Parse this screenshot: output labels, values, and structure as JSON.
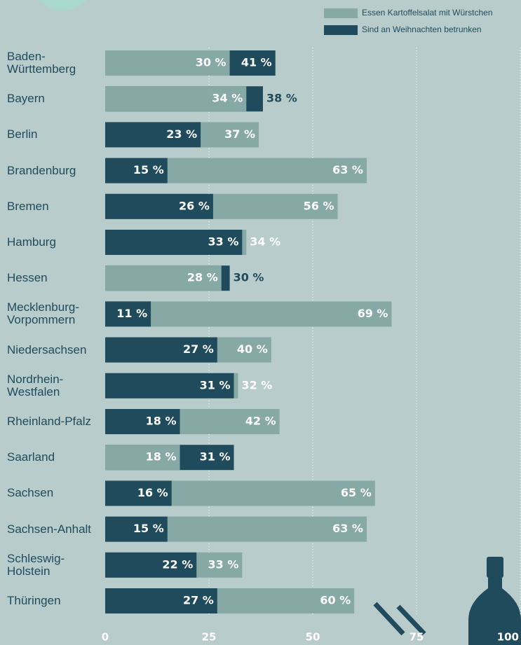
{
  "chart_data": {
    "type": "overlap-bar",
    "categories": [
      "Baden-Württemberg",
      "Bayern",
      "Berlin",
      "Brandenburg",
      "Bremen",
      "Hamburg",
      "Hessen",
      "Mecklenburg-Vorpommern",
      "Niedersachsen",
      "Nordrhein-Westfalen",
      "Rheinland-Pfalz",
      "Saarland",
      "Sachsen",
      "Sachsen-Anhalt",
      "Schleswig-Holstein",
      "Thüringen"
    ],
    "series": [
      {
        "name": "Essen Kartoffelsalat mit Würstchen",
        "color": "#86a9a5",
        "values": [
          30,
          34,
          37,
          63,
          56,
          34,
          28,
          69,
          40,
          32,
          42,
          18,
          65,
          63,
          33,
          60
        ],
        "value_labels": [
          "30 %",
          "34 %",
          "37 %",
          "63 %",
          "56 %",
          "34 %",
          "28 %",
          "69 %",
          "40 %",
          "32 %",
          "42 %",
          "18 %",
          "65 %",
          "63 %",
          "33 %",
          "60 %"
        ]
      },
      {
        "name": "Sind an Weihnachten betrunken",
        "color": "#1f4b5c",
        "values": [
          41,
          38,
          23,
          15,
          26,
          33,
          30,
          11,
          27,
          31,
          18,
          31,
          16,
          15,
          22,
          27
        ],
        "value_labels": [
          "41 %",
          "38 %",
          "23 %",
          "15 %",
          "26 %",
          "33 %",
          "30 %",
          "11 %",
          "27 %",
          "31 %",
          "18 %",
          "31 %",
          "16 %",
          "15 %",
          "22 %",
          "27 %"
        ]
      }
    ],
    "xlim": [
      0,
      100
    ],
    "xticks": [
      0,
      25,
      50,
      75,
      100
    ],
    "grid": true
  }
}
